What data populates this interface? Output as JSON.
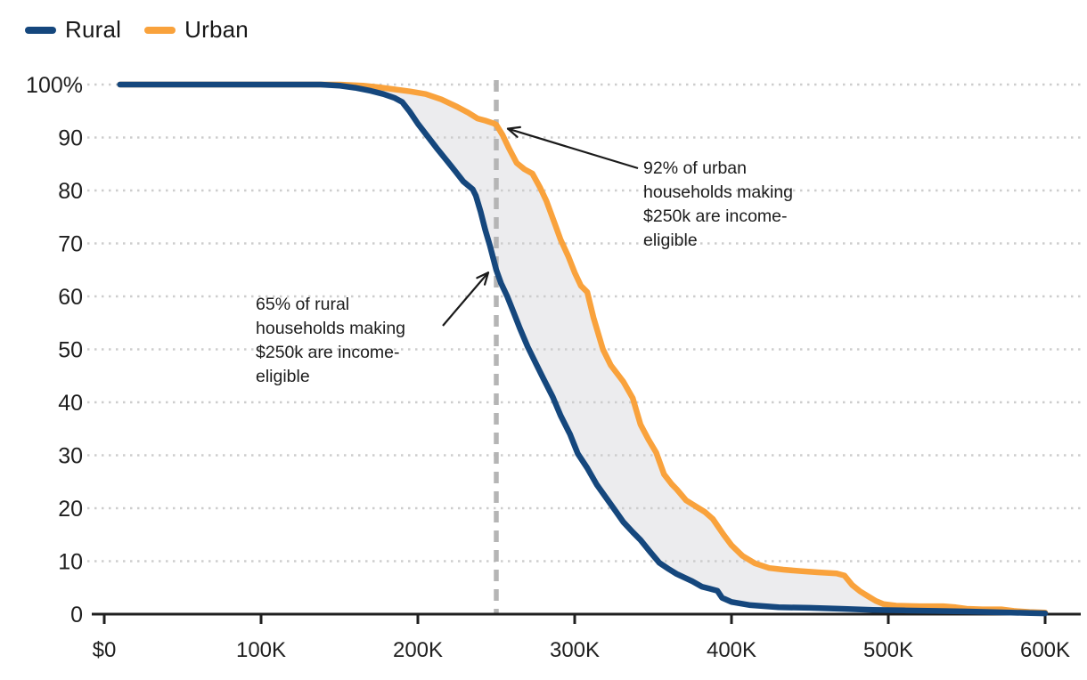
{
  "legend": {
    "items": [
      {
        "label": "Rural",
        "color": "#15477d"
      },
      {
        "label": "Urban",
        "color": "#f9a23c"
      }
    ]
  },
  "chart_data": {
    "type": "line",
    "title": "",
    "legend_position": "top-left",
    "grid": "dotted-horizontal",
    "xlim": [
      0,
      600
    ],
    "ylim": [
      0,
      100
    ],
    "x_axis": {
      "tick_values": [
        0,
        100,
        200,
        300,
        400,
        500,
        600
      ],
      "tick_labels": [
        "$0",
        "100K",
        "200K",
        "300K",
        "400K",
        "500K",
        "600K"
      ]
    },
    "y_axis": {
      "tick_values": [
        100,
        90,
        80,
        70,
        60,
        50,
        40,
        30,
        20,
        10,
        0
      ],
      "tick_labels": [
        "100%",
        "90",
        "80",
        "70",
        "60",
        "50",
        "40",
        "30",
        "20",
        "10",
        "0"
      ]
    },
    "reference_line": {
      "x": 250,
      "style": "dashed",
      "color": "#b5b5b5"
    },
    "fill_between": {
      "series": [
        "Urban",
        "Rural"
      ],
      "color": "#ececee"
    },
    "series": [
      {
        "name": "Urban",
        "color": "#f9a23c",
        "points": [
          [
            10,
            100
          ],
          [
            60,
            100
          ],
          [
            100,
            100
          ],
          [
            135,
            100
          ],
          [
            150,
            100
          ],
          [
            165,
            99.8
          ],
          [
            175,
            99.5
          ],
          [
            185,
            99.1
          ],
          [
            195,
            98.7
          ],
          [
            205,
            98.2
          ],
          [
            215,
            97.2
          ],
          [
            225,
            95.8
          ],
          [
            232,
            94.7
          ],
          [
            238,
            93.6
          ],
          [
            243,
            93.2
          ],
          [
            248,
            92.7
          ],
          [
            250,
            92.4
          ],
          [
            254,
            90.5
          ],
          [
            258,
            88
          ],
          [
            263,
            85.2
          ],
          [
            268,
            84
          ],
          [
            273,
            83.2
          ],
          [
            278,
            80.5
          ],
          [
            282,
            78
          ],
          [
            287,
            74
          ],
          [
            291,
            70.7
          ],
          [
            296,
            67.5
          ],
          [
            300,
            64.5
          ],
          [
            304,
            62
          ],
          [
            308,
            60.8
          ],
          [
            312,
            56
          ],
          [
            318,
            50
          ],
          [
            323,
            47
          ],
          [
            331,
            43.9
          ],
          [
            337,
            40.8
          ],
          [
            342,
            35.8
          ],
          [
            347,
            33
          ],
          [
            352,
            30.5
          ],
          [
            357,
            26.4
          ],
          [
            362,
            24.5
          ],
          [
            365,
            23.6
          ],
          [
            371,
            21.5
          ],
          [
            378,
            20.2
          ],
          [
            383,
            19.3
          ],
          [
            388,
            18
          ],
          [
            395,
            15
          ],
          [
            400,
            13
          ],
          [
            407,
            11
          ],
          [
            415,
            9.6
          ],
          [
            424,
            8.7
          ],
          [
            433,
            8.4
          ],
          [
            445,
            8.1
          ],
          [
            455,
            7.9
          ],
          [
            467,
            7.7
          ],
          [
            472,
            7.3
          ],
          [
            477,
            5.5
          ],
          [
            482,
            4.3
          ],
          [
            487,
            3.4
          ],
          [
            492,
            2.5
          ],
          [
            497,
            1.9
          ],
          [
            505,
            1.6
          ],
          [
            520,
            1.5
          ],
          [
            535,
            1.5
          ],
          [
            543,
            1.3
          ],
          [
            550,
            1
          ],
          [
            560,
            0.9
          ],
          [
            572,
            0.9
          ],
          [
            580,
            0.6
          ],
          [
            590,
            0.4
          ],
          [
            600,
            0.3
          ]
        ]
      },
      {
        "name": "Rural",
        "color": "#15477d",
        "points": [
          [
            10,
            100
          ],
          [
            60,
            100
          ],
          [
            100,
            100
          ],
          [
            125,
            100
          ],
          [
            138,
            100
          ],
          [
            150,
            99.8
          ],
          [
            160,
            99.4
          ],
          [
            170,
            98.8
          ],
          [
            178,
            98.2
          ],
          [
            185,
            97.5
          ],
          [
            190,
            96.7
          ],
          [
            195,
            94.8
          ],
          [
            200,
            92.6
          ],
          [
            206,
            90.3
          ],
          [
            212,
            88
          ],
          [
            218,
            85.8
          ],
          [
            224,
            83.6
          ],
          [
            229,
            81.7
          ],
          [
            235,
            80.2
          ],
          [
            237,
            79
          ],
          [
            240,
            76
          ],
          [
            243,
            72.5
          ],
          [
            246,
            69.5
          ],
          [
            250,
            65
          ],
          [
            253,
            62.5
          ],
          [
            257,
            60
          ],
          [
            261,
            57
          ],
          [
            265,
            54
          ],
          [
            270,
            50.5
          ],
          [
            275,
            47.5
          ],
          [
            280,
            44.5
          ],
          [
            286,
            41
          ],
          [
            291,
            37.5
          ],
          [
            297,
            34
          ],
          [
            302,
            30.3
          ],
          [
            308,
            27.6
          ],
          [
            314,
            24.5
          ],
          [
            320,
            22
          ],
          [
            326,
            19.5
          ],
          [
            331,
            17.4
          ],
          [
            337,
            15.5
          ],
          [
            342,
            14
          ],
          [
            348,
            11.8
          ],
          [
            354,
            9.7
          ],
          [
            360,
            8.5
          ],
          [
            365,
            7.6
          ],
          [
            370,
            6.9
          ],
          [
            375,
            6.2
          ],
          [
            381,
            5.2
          ],
          [
            386,
            4.8
          ],
          [
            391,
            4.4
          ],
          [
            394,
            3.1
          ],
          [
            400,
            2.3
          ],
          [
            412,
            1.7
          ],
          [
            430,
            1.3
          ],
          [
            450,
            1.2
          ],
          [
            470,
            1
          ],
          [
            490,
            0.8
          ],
          [
            510,
            0.7
          ],
          [
            530,
            0.6
          ],
          [
            550,
            0.5
          ],
          [
            570,
            0.35
          ],
          [
            585,
            0.25
          ],
          [
            600,
            0.15
          ]
        ]
      }
    ],
    "annotations": [
      {
        "id": "urban-note",
        "text": "92% of urban households making $250k are income-eligible",
        "lines": [
          "92% of urban",
          "households making",
          "$250k are income-",
          "eligible"
        ],
        "target_x": 250,
        "target_y": 92
      },
      {
        "id": "rural-note",
        "text": "65% of rural households making $250k are income-eligible",
        "lines": [
          "65% of rural",
          "households making",
          "$250k are income-",
          "eligible"
        ],
        "target_x": 250,
        "target_y": 65
      }
    ]
  }
}
